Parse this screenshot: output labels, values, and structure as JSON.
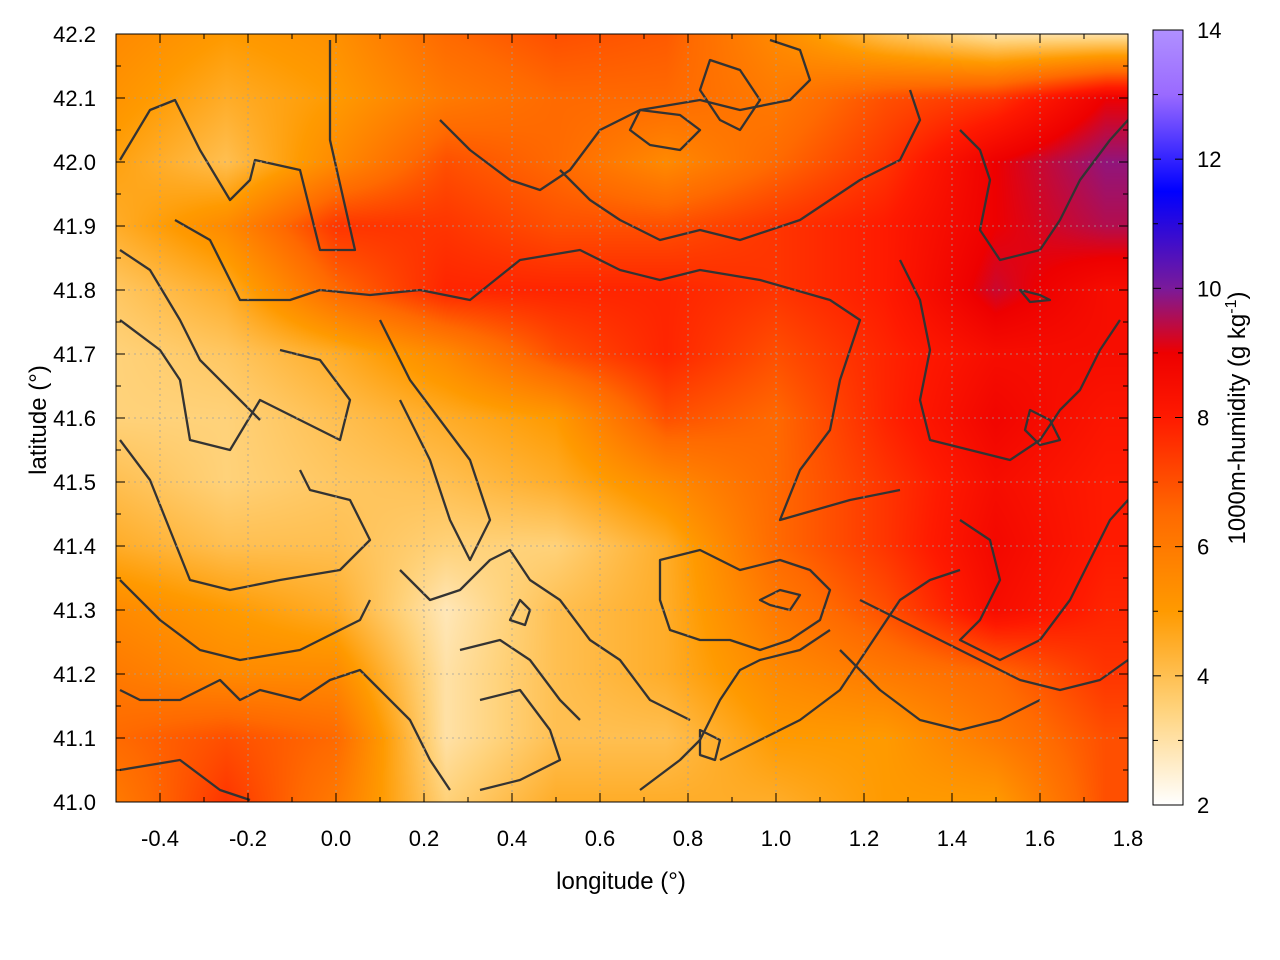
{
  "chart_data": {
    "type": "heatmap",
    "xlabel": "longitude (°)",
    "ylabel": "latitude (°)",
    "colorbar_label_main": "1000m-humidity (g kg",
    "colorbar_label_sup": "-1",
    "colorbar_label_close": ")",
    "xlim": [
      -0.5,
      1.8
    ],
    "ylim": [
      41.0,
      42.2
    ],
    "zlim": [
      2,
      14
    ],
    "x_ticks": [
      -0.4,
      -0.2,
      0.0,
      0.2,
      0.4,
      0.6,
      0.8,
      1.0,
      1.2,
      1.4,
      1.6,
      1.8
    ],
    "x_tick_labels": [
      "-0.4",
      "-0.2",
      "0.0",
      "0.2",
      "0.4",
      "0.6",
      "0.8",
      "1.0",
      "1.2",
      "1.4",
      "1.6",
      "1.8"
    ],
    "y_ticks": [
      41.0,
      41.1,
      41.2,
      41.3,
      41.4,
      41.5,
      41.6,
      41.7,
      41.8,
      41.9,
      42.0,
      42.1,
      42.2
    ],
    "y_tick_labels": [
      "41.0",
      "41.1",
      "41.2",
      "41.3",
      "41.4",
      "41.5",
      "41.6",
      "41.7",
      "41.8",
      "41.9",
      "42.0",
      "42.1",
      "42.2"
    ],
    "colorbar_ticks": [
      2,
      4,
      6,
      8,
      10,
      12,
      14
    ],
    "colorbar_tick_labels": [
      "2",
      "4",
      "6",
      "8",
      "10",
      "12",
      "14"
    ],
    "grid": true,
    "contours": true,
    "colormap": [
      "#ffffff",
      "#ffd27a",
      "#ff9a00",
      "#ff6a00",
      "#ff1a00",
      "#ee0000",
      "#7a1a9a",
      "#0000ff",
      "#9a6aff",
      "#b090ff"
    ],
    "colormap_stops": [
      2,
      3.5,
      5,
      6.5,
      8,
      9,
      10,
      11.5,
      13,
      14
    ],
    "lon": [
      -0.5,
      -0.25,
      0.0,
      0.25,
      0.5,
      0.75,
      1.0,
      1.25,
      1.5,
      1.75
    ],
    "lat": [
      42.2,
      42.1,
      42.0,
      41.9,
      41.8,
      41.7,
      41.6,
      41.5,
      41.4,
      41.3,
      41.2,
      41.1,
      41.0
    ],
    "values": [
      [
        5.5,
        5.0,
        5.3,
        6.5,
        7.0,
        6.8,
        5.5,
        4.0,
        3.0,
        3.0
      ],
      [
        5.2,
        4.5,
        5.0,
        6.0,
        6.5,
        6.5,
        6.0,
        7.0,
        7.5,
        9.0
      ],
      [
        4.8,
        4.0,
        5.5,
        7.0,
        6.5,
        5.5,
        6.5,
        7.5,
        9.0,
        9.8
      ],
      [
        4.5,
        5.5,
        7.5,
        7.5,
        7.0,
        7.0,
        7.5,
        8.0,
        9.0,
        9.5
      ],
      [
        3.8,
        4.5,
        6.5,
        7.8,
        7.8,
        7.8,
        7.5,
        8.0,
        9.3,
        8.5
      ],
      [
        3.5,
        3.8,
        4.5,
        5.5,
        7.0,
        7.8,
        7.0,
        7.8,
        8.5,
        8.5
      ],
      [
        3.5,
        3.5,
        4.0,
        4.5,
        5.0,
        7.0,
        6.5,
        7.8,
        8.8,
        8.2
      ],
      [
        4.0,
        3.5,
        3.8,
        4.0,
        4.5,
        5.5,
        6.5,
        7.5,
        8.5,
        8.0
      ],
      [
        4.5,
        4.0,
        4.0,
        3.5,
        3.5,
        4.5,
        6.5,
        7.5,
        8.7,
        8.0
      ],
      [
        5.5,
        5.0,
        4.5,
        2.8,
        4.0,
        4.5,
        6.0,
        7.0,
        8.5,
        7.8
      ],
      [
        6.0,
        5.5,
        5.5,
        3.0,
        4.0,
        4.5,
        5.5,
        6.0,
        6.5,
        7.5
      ],
      [
        6.5,
        7.0,
        6.5,
        3.0,
        4.0,
        4.0,
        5.0,
        5.0,
        6.0,
        7.0
      ],
      [
        6.0,
        7.5,
        6.0,
        3.5,
        4.5,
        4.5,
        4.5,
        5.0,
        5.0,
        7.0
      ]
    ]
  }
}
